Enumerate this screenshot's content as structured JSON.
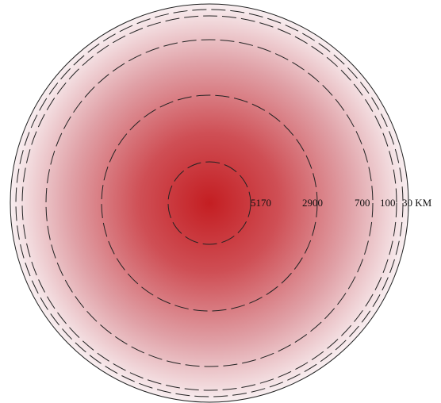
{
  "depth_labels": [
    "5170",
    "2900",
    "700",
    "100",
    "30 KM"
  ]
}
